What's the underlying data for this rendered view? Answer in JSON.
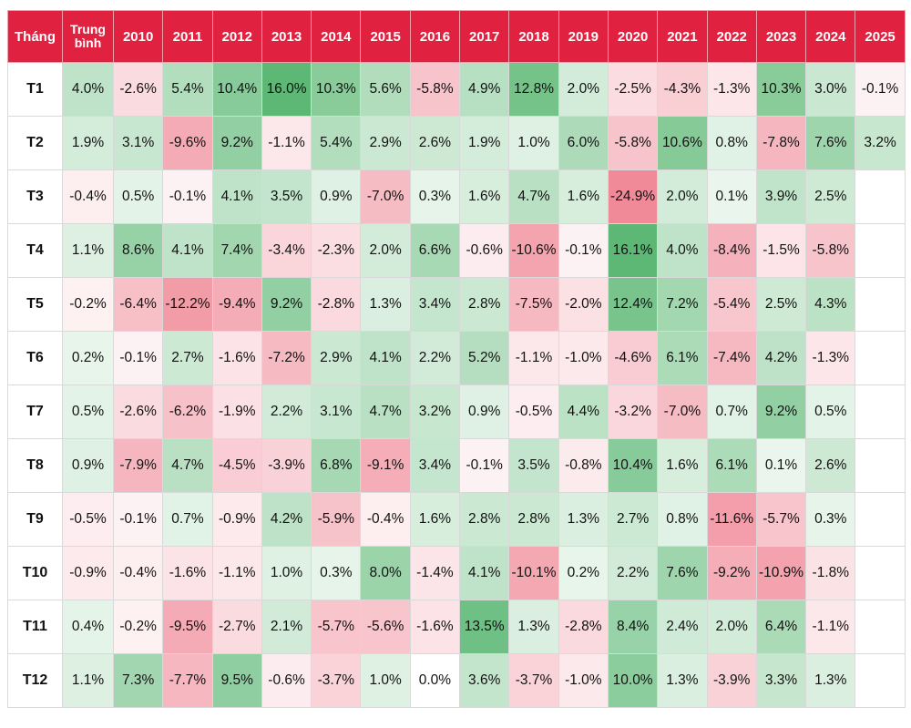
{
  "chart_data": {
    "type": "heatmap",
    "header": {
      "month_label": "Tháng",
      "average_label": "Trung bình",
      "years": [
        "2010",
        "2011",
        "2012",
        "2013",
        "2014",
        "2015",
        "2016",
        "2017",
        "2018",
        "2019",
        "2020",
        "2021",
        "2022",
        "2023",
        "2024",
        "2025"
      ]
    },
    "colors": {
      "header_bg": "#e0213f",
      "positive": "#5cb874",
      "negative": "#f08a98",
      "neutral": "#ffffff"
    },
    "rows": [
      {
        "month": "T1",
        "avg": "4.0%",
        "values": [
          "-2.6%",
          "5.4%",
          "10.4%",
          "16.0%",
          "10.3%",
          "5.6%",
          "-5.8%",
          "4.9%",
          "12.8%",
          "2.0%",
          "-2.5%",
          "-4.3%",
          "-1.3%",
          "10.3%",
          "3.0%",
          "-0.1%"
        ]
      },
      {
        "month": "T2",
        "avg": "1.9%",
        "values": [
          "3.1%",
          "-9.6%",
          "9.2%",
          "-1.1%",
          "5.4%",
          "2.9%",
          "2.6%",
          "1.9%",
          "1.0%",
          "6.0%",
          "-5.8%",
          "10.6%",
          "0.8%",
          "-7.8%",
          "7.6%",
          "3.2%"
        ]
      },
      {
        "month": "T3",
        "avg": "-0.4%",
        "values": [
          "0.5%",
          "-0.1%",
          "4.1%",
          "3.5%",
          "0.9%",
          "-7.0%",
          "0.3%",
          "1.6%",
          "4.7%",
          "1.6%",
          "-24.9%",
          "2.0%",
          "0.1%",
          "3.9%",
          "2.5%",
          ""
        ]
      },
      {
        "month": "T4",
        "avg": "1.1%",
        "values": [
          "8.6%",
          "4.1%",
          "7.4%",
          "-3.4%",
          "-2.3%",
          "2.0%",
          "6.6%",
          "-0.6%",
          "-10.6%",
          "-0.1%",
          "16.1%",
          "4.0%",
          "-8.4%",
          "-1.5%",
          "-5.8%",
          ""
        ]
      },
      {
        "month": "T5",
        "avg": "-0.2%",
        "values": [
          "-6.4%",
          "-12.2%",
          "-9.4%",
          "9.2%",
          "-2.8%",
          "1.3%",
          "3.4%",
          "2.8%",
          "-7.5%",
          "-2.0%",
          "12.4%",
          "7.2%",
          "-5.4%",
          "2.5%",
          "4.3%",
          ""
        ]
      },
      {
        "month": "T6",
        "avg": "0.2%",
        "values": [
          "-0.1%",
          "2.7%",
          "-1.6%",
          "-7.2%",
          "2.9%",
          "4.1%",
          "2.2%",
          "5.2%",
          "-1.1%",
          "-1.0%",
          "-4.6%",
          "6.1%",
          "-7.4%",
          "4.2%",
          "-1.3%",
          ""
        ]
      },
      {
        "month": "T7",
        "avg": "0.5%",
        "values": [
          "-2.6%",
          "-6.2%",
          "-1.9%",
          "2.2%",
          "3.1%",
          "4.7%",
          "3.2%",
          "0.9%",
          "-0.5%",
          "4.4%",
          "-3.2%",
          "-7.0%",
          "0.7%",
          "9.2%",
          "0.5%",
          ""
        ]
      },
      {
        "month": "T8",
        "avg": "0.9%",
        "values": [
          "-7.9%",
          "4.7%",
          "-4.5%",
          "-3.9%",
          "6.8%",
          "-9.1%",
          "3.4%",
          "-0.1%",
          "3.5%",
          "-0.8%",
          "10.4%",
          "1.6%",
          "6.1%",
          "0.1%",
          "2.6%",
          ""
        ]
      },
      {
        "month": "T9",
        "avg": "-0.5%",
        "values": [
          "-0.1%",
          "0.7%",
          "-0.9%",
          "4.2%",
          "-5.9%",
          "-0.4%",
          "1.6%",
          "2.8%",
          "2.8%",
          "1.3%",
          "2.7%",
          "0.8%",
          "-11.6%",
          "-5.7%",
          "0.3%",
          ""
        ]
      },
      {
        "month": "T10",
        "avg": "-0.9%",
        "values": [
          "-0.4%",
          "-1.6%",
          "-1.1%",
          "1.0%",
          "0.3%",
          "8.0%",
          "-1.4%",
          "4.1%",
          "-10.1%",
          "0.2%",
          "2.2%",
          "7.6%",
          "-9.2%",
          "-10.9%",
          "-1.8%",
          ""
        ]
      },
      {
        "month": "T11",
        "avg": "0.4%",
        "values": [
          "-0.2%",
          "-9.5%",
          "-2.7%",
          "2.1%",
          "-5.7%",
          "-5.6%",
          "-1.6%",
          "13.5%",
          "1.3%",
          "-2.8%",
          "8.4%",
          "2.4%",
          "2.0%",
          "6.4%",
          "-1.1%",
          ""
        ]
      },
      {
        "month": "T12",
        "avg": "1.1%",
        "values": [
          "7.3%",
          "-7.7%",
          "9.5%",
          "-0.6%",
          "-3.7%",
          "1.0%",
          "0.0%",
          "3.6%",
          "-3.7%",
          "-1.0%",
          "10.0%",
          "1.3%",
          "-3.9%",
          "3.3%",
          "1.3%",
          ""
        ]
      }
    ]
  }
}
